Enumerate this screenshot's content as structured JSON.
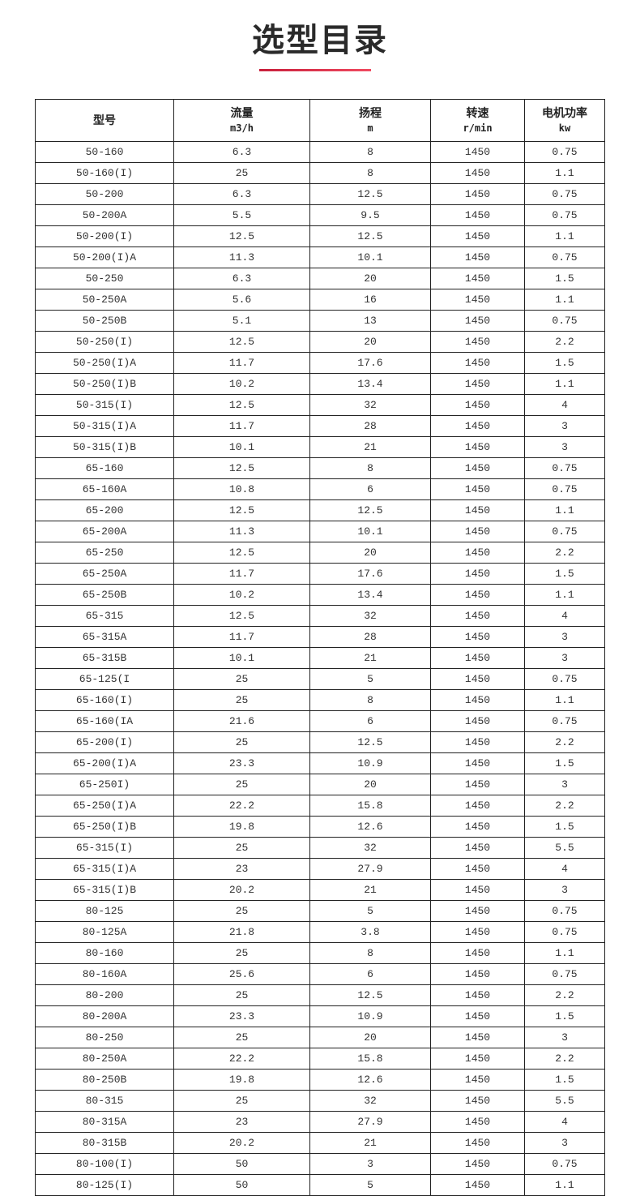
{
  "title": "选型目录",
  "accent_color": "#e0304a",
  "table": {
    "headers": [
      {
        "label": "型号",
        "unit": ""
      },
      {
        "label": "流量",
        "unit": "m3/h"
      },
      {
        "label": "扬程",
        "unit": "m"
      },
      {
        "label": "转速",
        "unit": "r/min"
      },
      {
        "label": "电机功率",
        "unit": "kw"
      }
    ],
    "rows": [
      [
        "50-160",
        "6.3",
        "8",
        "1450",
        "0.75"
      ],
      [
        "50-160(I)",
        "25",
        "8",
        "1450",
        "1.1"
      ],
      [
        "50-200",
        "6.3",
        "12.5",
        "1450",
        "0.75"
      ],
      [
        "50-200A",
        "5.5",
        "9.5",
        "1450",
        "0.75"
      ],
      [
        "50-200(I)",
        "12.5",
        "12.5",
        "1450",
        "1.1"
      ],
      [
        "50-200(I)A",
        "11.3",
        "10.1",
        "1450",
        "0.75"
      ],
      [
        "50-250",
        "6.3",
        "20",
        "1450",
        "1.5"
      ],
      [
        "50-250A",
        "5.6",
        "16",
        "1450",
        "1.1"
      ],
      [
        "50-250B",
        "5.1",
        "13",
        "1450",
        "0.75"
      ],
      [
        "50-250(I)",
        "12.5",
        "20",
        "1450",
        "2.2"
      ],
      [
        "50-250(I)A",
        "11.7",
        "17.6",
        "1450",
        "1.5"
      ],
      [
        "50-250(I)B",
        "10.2",
        "13.4",
        "1450",
        "1.1"
      ],
      [
        "50-315(I)",
        "12.5",
        "32",
        "1450",
        "4"
      ],
      [
        "50-315(I)A",
        "11.7",
        "28",
        "1450",
        "3"
      ],
      [
        "50-315(I)B",
        "10.1",
        "21",
        "1450",
        "3"
      ],
      [
        "65-160",
        "12.5",
        "8",
        "1450",
        "0.75"
      ],
      [
        "65-160A",
        "10.8",
        "6",
        "1450",
        "0.75"
      ],
      [
        "65-200",
        "12.5",
        "12.5",
        "1450",
        "1.1"
      ],
      [
        "65-200A",
        "11.3",
        "10.1",
        "1450",
        "0.75"
      ],
      [
        "65-250",
        "12.5",
        "20",
        "1450",
        "2.2"
      ],
      [
        "65-250A",
        "11.7",
        "17.6",
        "1450",
        "1.5"
      ],
      [
        "65-250B",
        "10.2",
        "13.4",
        "1450",
        "1.1"
      ],
      [
        "65-315",
        "12.5",
        "32",
        "1450",
        "4"
      ],
      [
        "65-315A",
        "11.7",
        "28",
        "1450",
        "3"
      ],
      [
        "65-315B",
        "10.1",
        "21",
        "1450",
        "3"
      ],
      [
        "65-125(I",
        "25",
        "5",
        "1450",
        "0.75"
      ],
      [
        "65-160(I)",
        "25",
        "8",
        "1450",
        "1.1"
      ],
      [
        "65-160(IA",
        "21.6",
        "6",
        "1450",
        "0.75"
      ],
      [
        "65-200(I)",
        "25",
        "12.5",
        "1450",
        "2.2"
      ],
      [
        "65-200(I)A",
        "23.3",
        "10.9",
        "1450",
        "1.5"
      ],
      [
        "65-250I)",
        "25",
        "20",
        "1450",
        "3"
      ],
      [
        "65-250(I)A",
        "22.2",
        "15.8",
        "1450",
        "2.2"
      ],
      [
        "65-250(I)B",
        "19.8",
        "12.6",
        "1450",
        "1.5"
      ],
      [
        "65-315(I)",
        "25",
        "32",
        "1450",
        "5.5"
      ],
      [
        "65-315(I)A",
        "23",
        "27.9",
        "1450",
        "4"
      ],
      [
        "65-315(I)B",
        "20.2",
        "21",
        "1450",
        "3"
      ],
      [
        "80-125",
        "25",
        "5",
        "1450",
        "0.75"
      ],
      [
        "80-125A",
        "21.8",
        "3.8",
        "1450",
        "0.75"
      ],
      [
        "80-160",
        "25",
        "8",
        "1450",
        "1.1"
      ],
      [
        "80-160A",
        "25.6",
        "6",
        "1450",
        "0.75"
      ],
      [
        "80-200",
        "25",
        "12.5",
        "1450",
        "2.2"
      ],
      [
        "80-200A",
        "23.3",
        "10.9",
        "1450",
        "1.5"
      ],
      [
        "80-250",
        "25",
        "20",
        "1450",
        "3"
      ],
      [
        "80-250A",
        "22.2",
        "15.8",
        "1450",
        "2.2"
      ],
      [
        "80-250B",
        "19.8",
        "12.6",
        "1450",
        "1.5"
      ],
      [
        "80-315",
        "25",
        "32",
        "1450",
        "5.5"
      ],
      [
        "80-315A",
        "23",
        "27.9",
        "1450",
        "4"
      ],
      [
        "80-315B",
        "20.2",
        "21",
        "1450",
        "3"
      ],
      [
        "80-100(I)",
        "50",
        "3",
        "1450",
        "0.75"
      ],
      [
        "80-125(I)",
        "50",
        "5",
        "1450",
        "1.1"
      ]
    ]
  }
}
